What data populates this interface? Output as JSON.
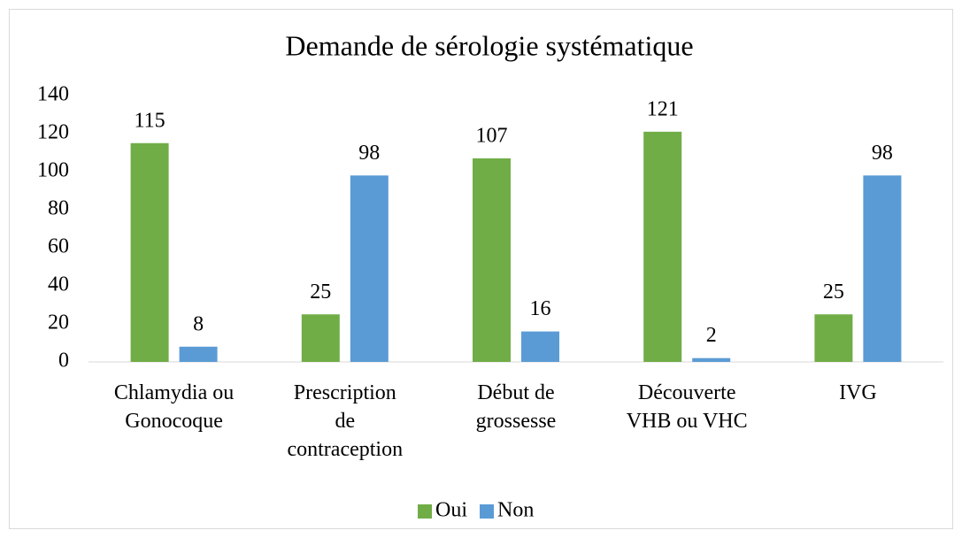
{
  "chart_data": {
    "type": "bar",
    "title": "Demande de sérologie systématique",
    "categories": [
      "Chlamydia ou\nGonocoque",
      "Prescription\nde\ncontraception",
      "Début de\ngrossesse",
      "Découverte\nVHB ou VHC",
      "IVG"
    ],
    "series": [
      {
        "name": "Oui",
        "color": "#70ad47",
        "values": [
          115,
          25,
          107,
          121,
          25
        ]
      },
      {
        "name": "Non",
        "color": "#5b9bd5",
        "values": [
          8,
          98,
          16,
          2,
          98
        ]
      }
    ],
    "ylim": [
      0,
      140
    ],
    "yticks": [
      0,
      20,
      40,
      60,
      80,
      100,
      120,
      140
    ],
    "grid": false,
    "legend": "bottom"
  }
}
